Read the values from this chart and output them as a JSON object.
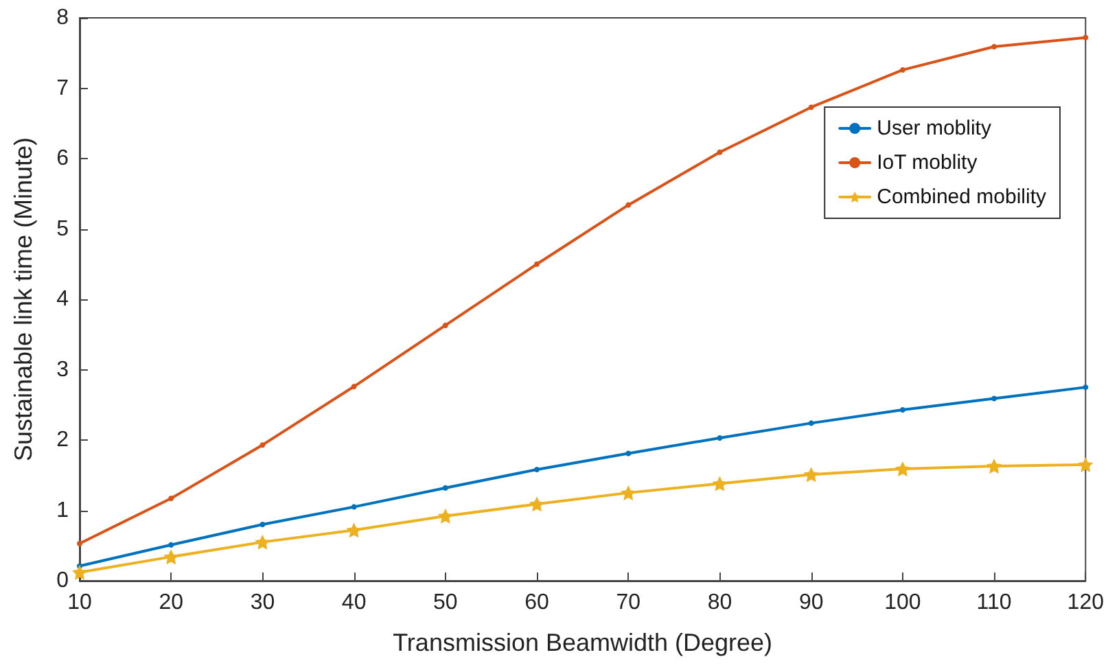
{
  "chart_data": {
    "type": "line",
    "xlabel": "Transmission Beamwidth (Degree)",
    "ylabel": "Sustainable link time (Minute)",
    "x": [
      10,
      20,
      30,
      40,
      50,
      60,
      70,
      80,
      90,
      100,
      110,
      120
    ],
    "series": [
      {
        "name": "User moblity",
        "color": "#0072bd",
        "marker": "circle",
        "values": [
          0.21,
          0.51,
          0.8,
          1.05,
          1.32,
          1.58,
          1.81,
          2.03,
          2.24,
          2.43,
          2.59,
          2.75
        ]
      },
      {
        "name": "IoT moblity",
        "color": "#d95319",
        "marker": "circle",
        "values": [
          0.53,
          1.17,
          1.93,
          2.76,
          3.63,
          4.5,
          5.34,
          6.09,
          6.73,
          7.26,
          7.59,
          7.72
        ]
      },
      {
        "name": "Combined mobility",
        "color": "#edb120",
        "marker": "star",
        "values": [
          0.12,
          0.34,
          0.55,
          0.72,
          0.92,
          1.09,
          1.25,
          1.38,
          1.51,
          1.59,
          1.63,
          1.65
        ]
      }
    ],
    "xlim": [
      10,
      120
    ],
    "xticks": [
      10,
      20,
      30,
      40,
      50,
      60,
      70,
      80,
      90,
      100,
      110,
      120
    ],
    "ylim": [
      0,
      8
    ],
    "yticks": [
      0,
      1,
      2,
      3,
      4,
      5,
      6,
      7,
      8
    ],
    "grid": false,
    "legend": "top right",
    "line_style": "solid"
  }
}
